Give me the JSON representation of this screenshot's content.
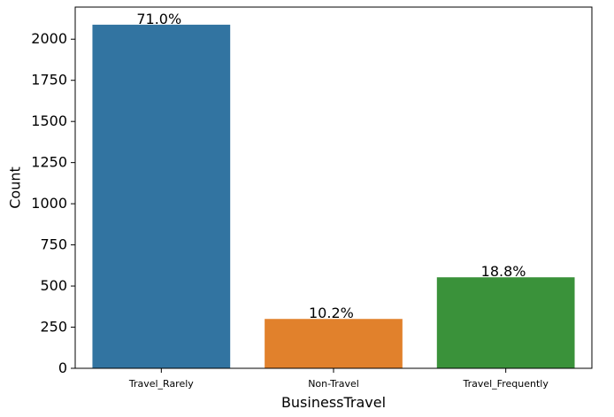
{
  "chart_data": {
    "type": "bar",
    "categories": [
      "Travel_Rarely",
      "Non-Travel",
      "Travel_Frequently"
    ],
    "values": [
      2088,
      300,
      553
    ],
    "data_labels": [
      "71.0%",
      "10.2%",
      "18.8%"
    ],
    "colors": [
      "#3274a1",
      "#e1812c",
      "#3a923a"
    ],
    "title": "",
    "xlabel": "BusinessTravel",
    "ylabel": "Count",
    "ylim": [
      0,
      2195
    ],
    "yticks": [
      0,
      250,
      500,
      750,
      1000,
      1250,
      1500,
      1750,
      2000
    ],
    "grid": false,
    "legend": "none"
  }
}
